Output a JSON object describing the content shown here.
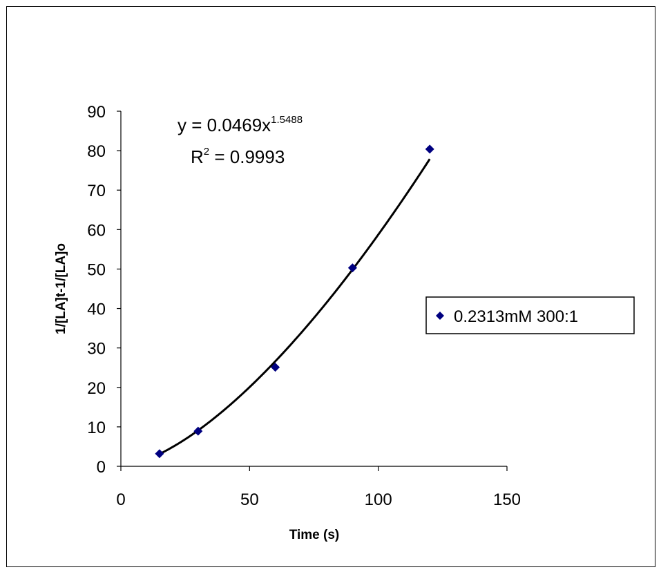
{
  "chart_data": {
    "type": "scatter",
    "title": "",
    "xlabel": "Time (s)",
    "ylabel": "1/[LA]t-1/[LA]o",
    "xlim": [
      0,
      150
    ],
    "ylim": [
      0,
      90
    ],
    "x_ticks": [
      0,
      50,
      100,
      150
    ],
    "y_ticks": [
      0,
      10,
      20,
      30,
      40,
      50,
      60,
      70,
      80,
      90
    ],
    "grid": false,
    "legend_position": "right",
    "series": [
      {
        "name": "0.2313mM 300:1",
        "marker": "diamond",
        "color": "#000080",
        "x": [
          15,
          30,
          60,
          90,
          120
        ],
        "y": [
          3.2,
          8.9,
          25.1,
          50.3,
          80.4
        ]
      }
    ],
    "trendline": {
      "type": "power",
      "coefficient": 0.0469,
      "exponent": 1.5488,
      "x_range": [
        15,
        120
      ],
      "color": "#000000",
      "equation_base": "y = 0.0469x",
      "equation_exponent": "1.5488",
      "r2_base": "R",
      "r2_exponent": "2",
      "r2_value": " = 0.9993"
    }
  }
}
